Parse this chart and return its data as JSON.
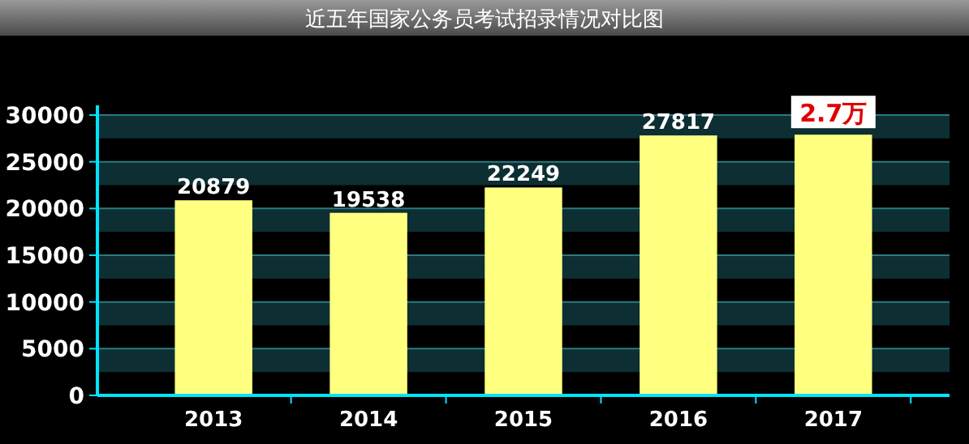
{
  "chart_data": {
    "type": "bar",
    "title": "近五年国家公务员考试招录情况对比图",
    "categories": [
      "2013",
      "2014",
      "2015",
      "2016",
      "2017"
    ],
    "values": [
      20879,
      19538,
      22249,
      27817,
      27900
    ],
    "value_labels": [
      "20879",
      "19538",
      "22249",
      "27817",
      null
    ],
    "color": "#ffff80",
    "ylim": [
      0,
      30000
    ],
    "yticks": [
      0,
      5000,
      10000,
      15000,
      20000,
      25000,
      30000
    ],
    "grid": "y",
    "bands": [
      {
        "axis": "y",
        "from": 2500,
        "to": 5000,
        "color": "#0d2f33"
      },
      {
        "axis": "y",
        "from": 7500,
        "to": 10000,
        "color": "#0d2f33"
      },
      {
        "axis": "y",
        "from": 12500,
        "to": 15000,
        "color": "#0d2f33"
      },
      {
        "axis": "y",
        "from": 17500,
        "to": 20000,
        "color": "#0d2f33"
      },
      {
        "axis": "y",
        "from": 22500,
        "to": 25000,
        "color": "#0d2f33"
      },
      {
        "axis": "y",
        "from": 27500,
        "to": 30000,
        "color": "#0d2f33"
      }
    ],
    "annotations": [
      {
        "text": "2.7万",
        "x": "2017",
        "y": 27900
      }
    ]
  }
}
